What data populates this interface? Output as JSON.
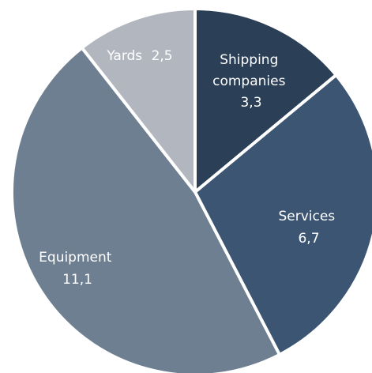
{
  "chart_data": {
    "type": "pie",
    "title": "",
    "start": "12 o'clock",
    "direction": "clockwise",
    "slices": [
      {
        "label_lines": [
          "Shipping",
          "companies"
        ],
        "value_text": "3,3",
        "value": 3.3,
        "color": "#2b3f57"
      },
      {
        "label_lines": [
          "Services"
        ],
        "value_text": "6,7",
        "value": 6.7,
        "color": "#3b5573"
      },
      {
        "label_lines": [
          "Equipment"
        ],
        "value_text": "11,1",
        "value": 11.1,
        "color": "#6e7f92"
      },
      {
        "label_lines": [
          "Yards"
        ],
        "value_text": "2,5",
        "value": 2.5,
        "color": "#b2b7bf"
      }
    ]
  }
}
